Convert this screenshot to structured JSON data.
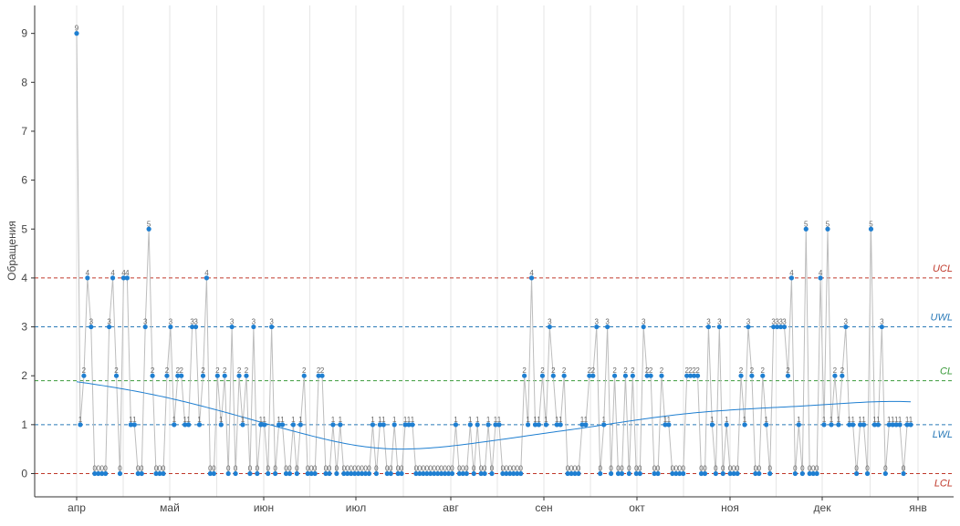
{
  "chart_data": {
    "type": "line",
    "title": "",
    "xlabel": "",
    "ylabel": "Обращения",
    "ylim": [
      -0.45,
      9.6
    ],
    "yticks": [
      0,
      1,
      2,
      3,
      4,
      5,
      6,
      7,
      8,
      9
    ],
    "x_tick_labels": [
      "апр",
      "май",
      "июн",
      "июл",
      "авг",
      "сен",
      "окт",
      "ноя",
      "дек",
      "янв"
    ],
    "grid": "vertical",
    "reference_lines": [
      {
        "label": "UCL",
        "value": 4,
        "color": "#c0392b"
      },
      {
        "label": "UWL",
        "value": 3,
        "color": "#2a7ab8"
      },
      {
        "label": "CL",
        "value": 1.9,
        "color": "#3a9a3a"
      },
      {
        "label": "LWL",
        "value": 1,
        "color": "#2a7ab8"
      },
      {
        "label": "LCL",
        "value": 0,
        "color": "#c0392b"
      }
    ],
    "values": [
      9,
      1,
      2,
      4,
      3,
      0,
      0,
      0,
      0,
      3,
      4,
      2,
      0,
      4,
      4,
      1,
      1,
      0,
      0,
      3,
      5,
      2,
      0,
      0,
      0,
      2,
      3,
      1,
      2,
      2,
      1,
      1,
      3,
      3,
      1,
      2,
      4,
      0,
      0,
      2,
      1,
      2,
      0,
      3,
      0,
      2,
      1,
      2,
      0,
      3,
      0,
      1,
      1,
      0,
      3,
      0,
      1,
      1,
      0,
      0,
      1,
      0,
      1,
      2,
      0,
      0,
      0,
      2,
      2,
      0,
      0,
      1,
      0,
      1,
      0,
      0,
      0,
      0,
      0,
      0,
      0,
      0,
      1,
      0,
      1,
      1,
      0,
      0,
      1,
      0,
      0,
      1,
      1,
      1,
      0,
      0,
      0,
      0,
      0,
      0,
      0,
      0,
      0,
      0,
      0,
      1,
      0,
      0,
      0,
      1,
      0,
      1,
      0,
      0,
      1,
      0,
      1,
      1,
      0,
      0,
      0,
      0,
      0,
      0,
      2,
      1,
      4,
      1,
      1,
      2,
      1,
      3,
      2,
      1,
      1,
      2,
      0,
      0,
      0,
      0,
      1,
      1,
      2,
      2,
      3,
      0,
      1,
      3,
      0,
      2,
      0,
      0,
      2,
      0,
      2,
      0,
      0,
      3,
      2,
      2,
      0,
      0,
      2,
      1,
      1,
      0,
      0,
      0,
      0,
      2,
      2,
      2,
      2,
      0,
      0,
      3,
      1,
      0,
      3,
      0,
      1,
      0,
      0,
      0,
      2,
      1,
      3,
      2,
      0,
      0,
      2,
      1,
      0,
      3,
      3,
      3,
      3,
      2,
      4,
      0,
      1,
      0,
      5,
      0,
      0,
      0,
      4,
      1,
      5,
      1,
      2,
      1,
      2,
      3,
      1,
      1,
      0,
      1,
      1,
      0,
      5,
      1,
      1,
      3,
      0,
      1,
      1,
      1,
      1,
      0,
      1,
      1
    ],
    "trend_series": {
      "name": "",
      "color": "#1f7fd1"
    }
  }
}
